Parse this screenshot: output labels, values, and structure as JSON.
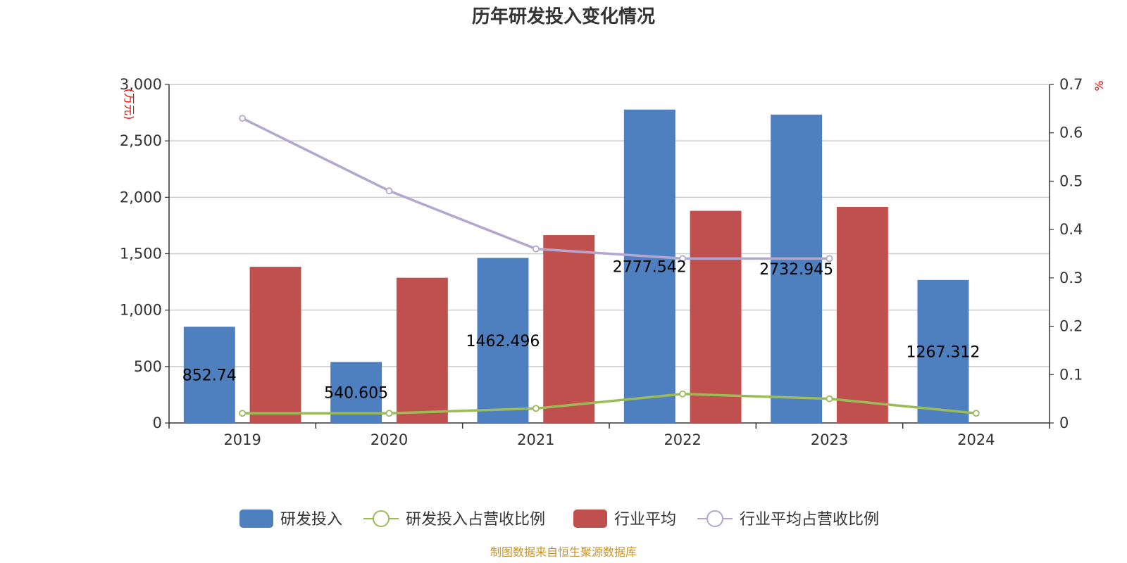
{
  "chart_data": {
    "type": "bar",
    "title": "历年研发投入变化情况",
    "categories": [
      "2019",
      "2020",
      "2021",
      "2022",
      "2023",
      "2024"
    ],
    "y_left": {
      "unit": "(万元)",
      "range": [
        0,
        3000
      ],
      "ticks": [
        "0",
        "500",
        "1,000",
        "1,500",
        "2,000",
        "2,500",
        "3,000"
      ],
      "tick_values": [
        0,
        500,
        1000,
        1500,
        2000,
        2500,
        3000
      ]
    },
    "y_right": {
      "unit": "%",
      "range": [
        0,
        0.7
      ],
      "ticks": [
        "0",
        "0.1",
        "0.2",
        "0.3",
        "0.4",
        "0.5",
        "0.6",
        "0.7"
      ],
      "tick_values": [
        0,
        0.1,
        0.2,
        0.3,
        0.4,
        0.5,
        0.6,
        0.7
      ]
    },
    "grid": true,
    "legend_position": "bottom",
    "series": [
      {
        "name": "研发投入",
        "type": "bar",
        "axis": "left",
        "color": "#4e7fbe",
        "values": [
          852.74,
          540.605,
          1462.496,
          2777.542,
          2732.945,
          1267.312
        ],
        "labels": [
          "852.74",
          "540.605",
          "1462.496",
          "2777.542",
          "2732.945",
          "1267.312"
        ]
      },
      {
        "name": "研发投入占营收比例",
        "type": "line",
        "axis": "right",
        "color": "#9bbb59",
        "values": [
          0.02,
          0.02,
          0.03,
          0.06,
          0.05,
          0.02
        ]
      },
      {
        "name": "行业平均",
        "type": "bar",
        "axis": "left",
        "color": "#c0504d",
        "values": [
          1384,
          1287,
          1665,
          1880,
          1915,
          null
        ]
      },
      {
        "name": "行业平均占营收比例",
        "type": "line",
        "axis": "right",
        "color": "#b3a6cf",
        "values": [
          0.63,
          0.48,
          0.36,
          0.34,
          0.34,
          null
        ]
      }
    ]
  },
  "source": "制图数据来自恒生聚源数据库"
}
